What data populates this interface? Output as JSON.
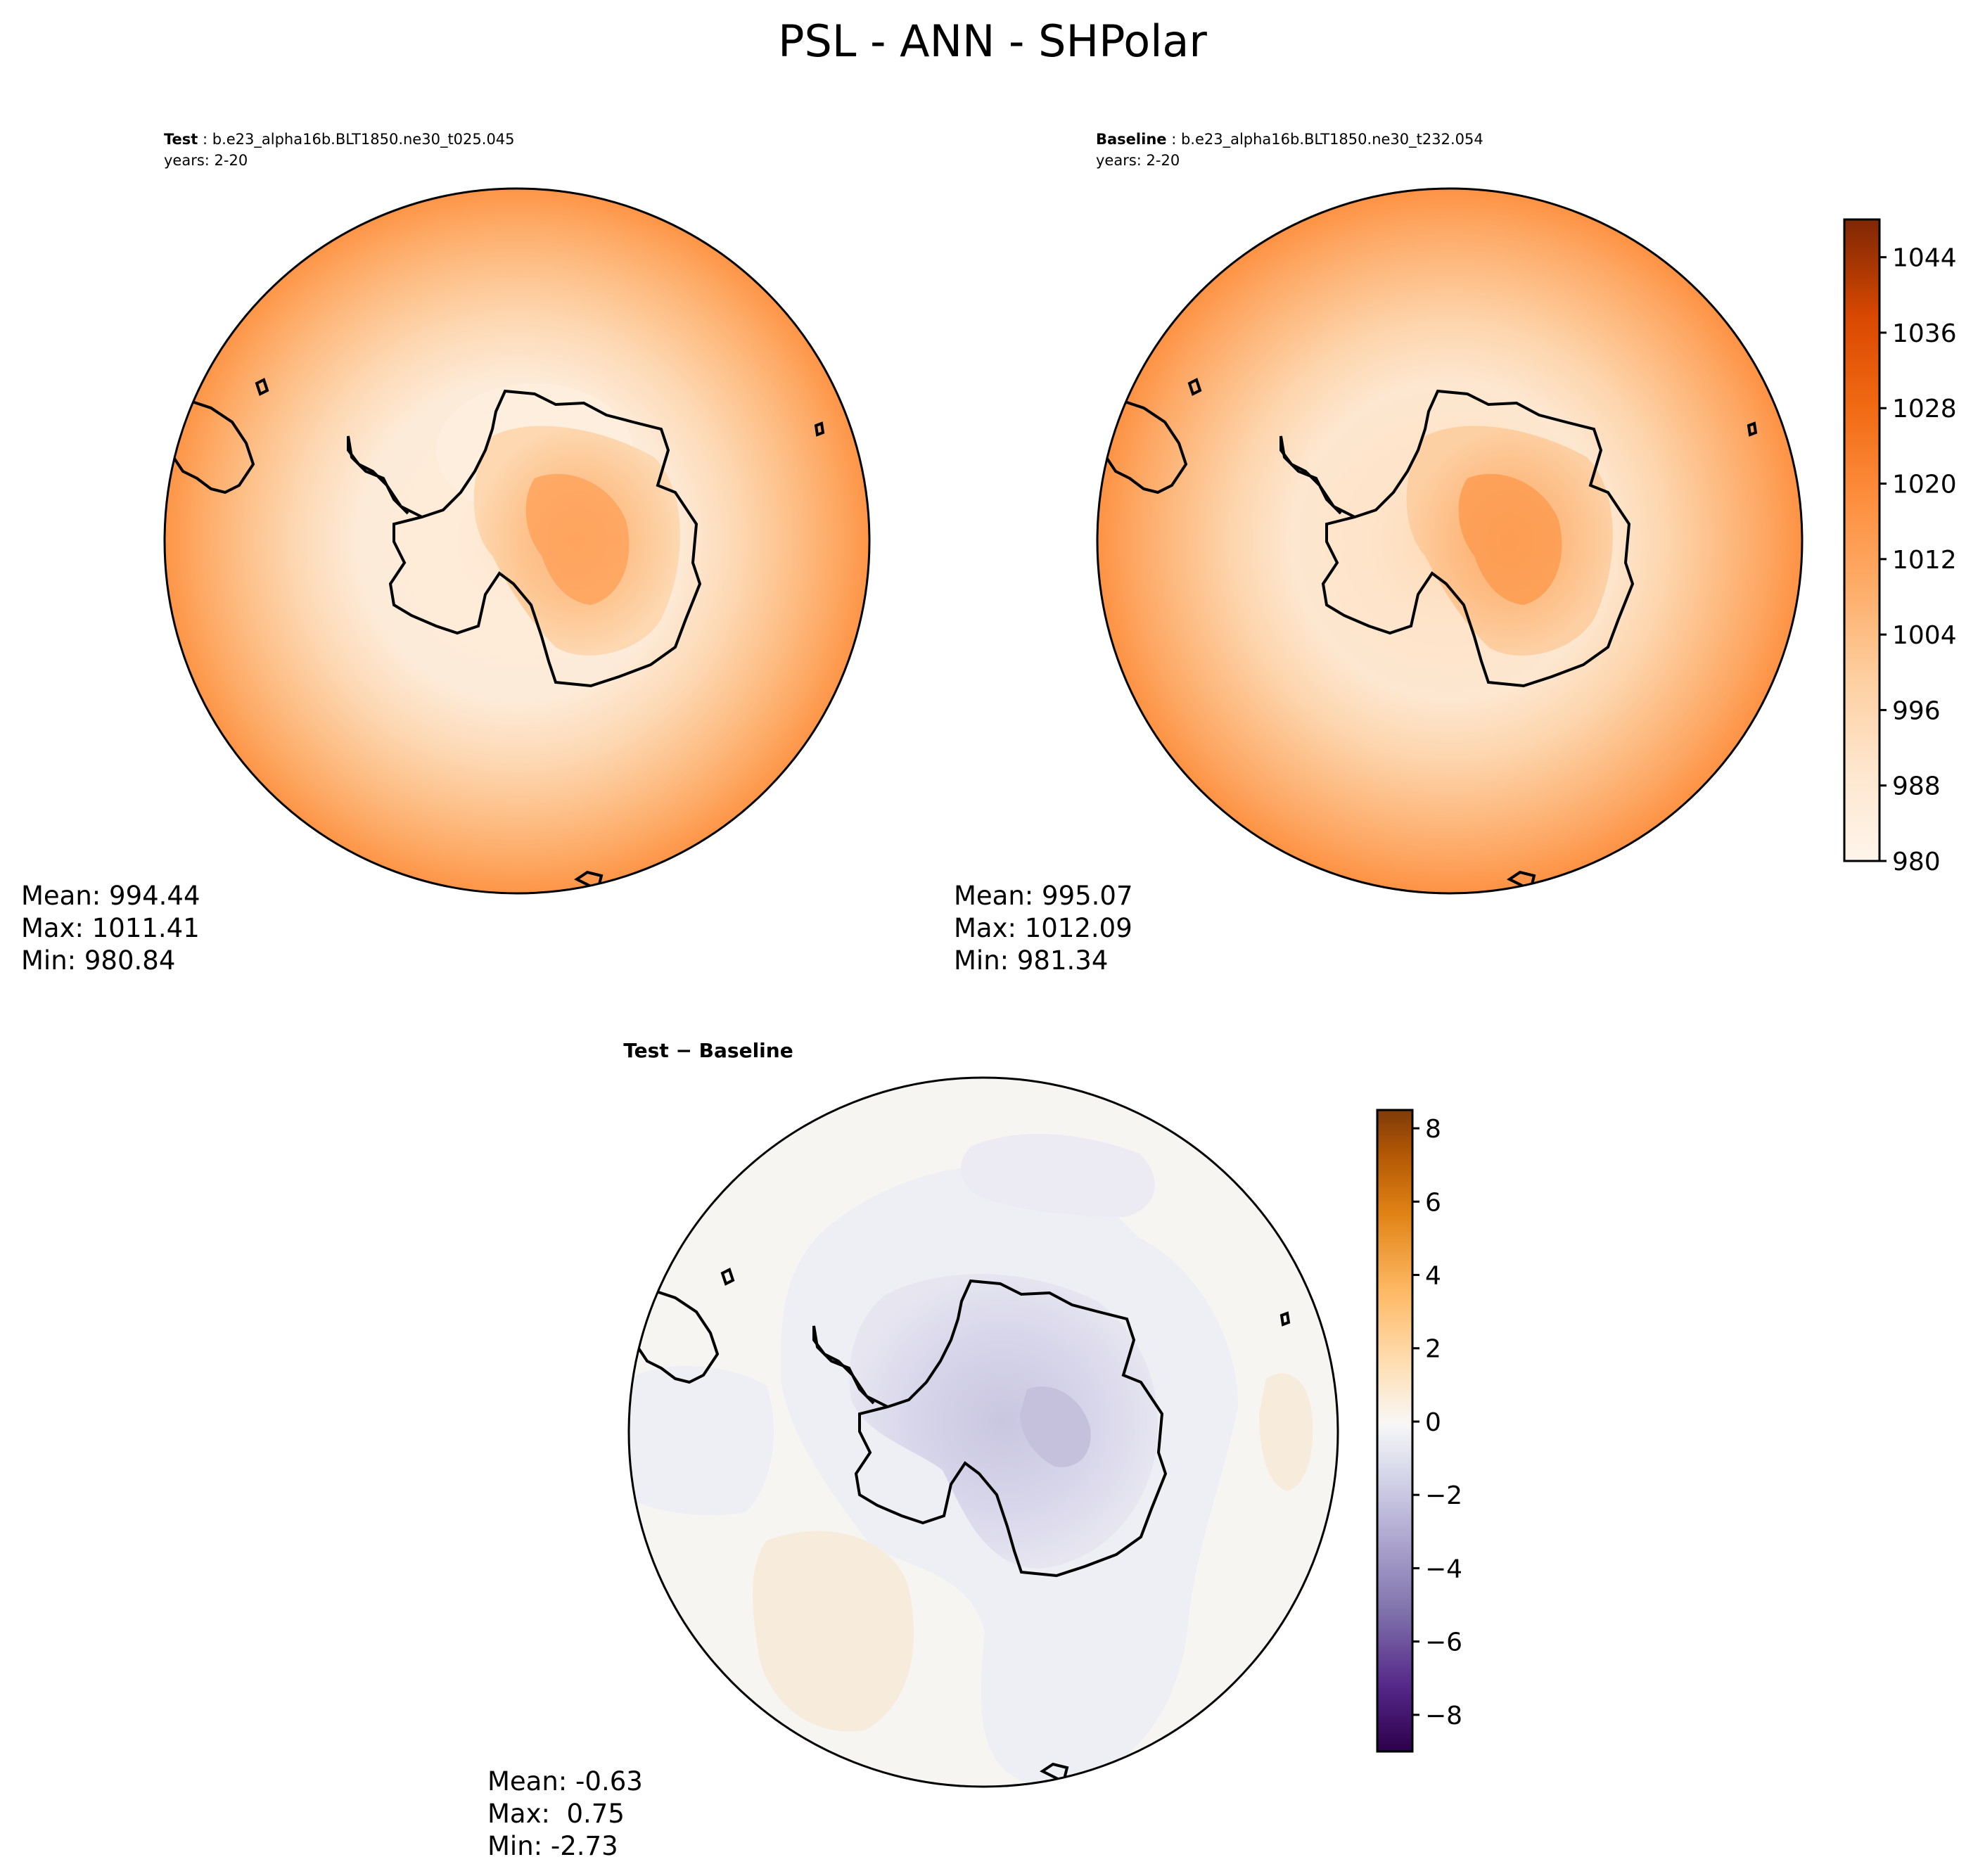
{
  "figure": {
    "title": "PSL - ANN - SHPolar"
  },
  "chart_data": [
    {
      "type": "contour",
      "map_projection": "south-polar-stereographic",
      "title_bold": "Test",
      "title_rest": " : b.e23_alpha16b.BLT1850.ne30_t025.045",
      "subtitle": "years: 2-20",
      "stats": {
        "mean": "994.44",
        "max": "1011.41",
        "min": "980.84"
      },
      "stat_labels": {
        "mean": "Mean: ",
        "max": "Max: ",
        "min": "Min: "
      },
      "field_range": [
        980.84,
        1011.41
      ]
    },
    {
      "type": "contour",
      "map_projection": "south-polar-stereographic",
      "title_bold": "Baseline",
      "title_rest": " : b.e23_alpha16b.BLT1850.ne30_t232.054",
      "subtitle": "years: 2-20",
      "stats": {
        "mean": "995.07",
        "max": "1012.09",
        "min": "981.34"
      },
      "stat_labels": {
        "mean": "Mean: ",
        "max": "Max: ",
        "min": "Min: "
      },
      "field_range": [
        981.34,
        1012.09
      ],
      "colorbar": {
        "colormap": "Oranges",
        "range": [
          980,
          1048
        ],
        "levels": 34,
        "ticks": [
          "980",
          "988",
          "996",
          "1004",
          "1012",
          "1020",
          "1028",
          "1036",
          "1044"
        ],
        "tick_values": [
          980,
          988,
          996,
          1004,
          1012,
          1020,
          1028,
          1036,
          1044
        ],
        "colors": [
          "#fff5eb",
          "#fdd0a2",
          "#fdae6b",
          "#fd8d3c",
          "#f16913",
          "#d94801",
          "#a63603",
          "#7f2704"
        ]
      }
    },
    {
      "type": "contour",
      "map_projection": "south-polar-stereographic",
      "title_bold": "Test − Baseline",
      "stats": {
        "mean": "-0.63",
        "max": " 0.75",
        "min": "-2.73"
      },
      "stat_labels": {
        "mean": "Mean: ",
        "max": "Max: ",
        "min": "Min: "
      },
      "field_range": [
        -2.73,
        0.75
      ],
      "colorbar": {
        "colormap": "PuOr_r",
        "range": [
          -9,
          8.5
        ],
        "levels": 35,
        "ticks": [
          "−8",
          "−6",
          "−4",
          "−2",
          "0",
          "2",
          "4",
          "6",
          "8"
        ],
        "tick_values": [
          -8,
          -6,
          -4,
          -2,
          0,
          2,
          4,
          6,
          8
        ],
        "colors": [
          "#2d004b",
          "#542788",
          "#8073ac",
          "#b2abd2",
          "#d8daeb",
          "#f7f7f7",
          "#fee0b6",
          "#fdb863",
          "#e08214",
          "#b35806",
          "#7f3b08"
        ]
      }
    }
  ]
}
